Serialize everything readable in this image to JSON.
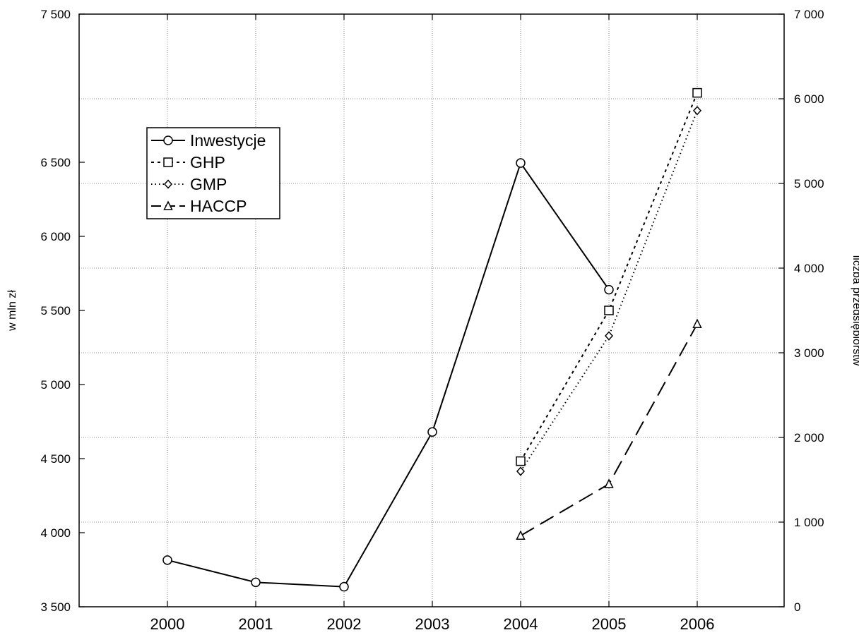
{
  "chart_data": {
    "type": "line",
    "title": "",
    "xlabel": "",
    "ylabel_left": "w mln zł",
    "ylabel_right": "liczba przedsiębiorstw",
    "categories": [
      "2000",
      "2001",
      "2002",
      "2003",
      "2004",
      "2005",
      "2006"
    ],
    "ylim_left": [
      3500,
      7500
    ],
    "ylim_right": [
      0,
      7000
    ],
    "yticks_left": [
      "3 500",
      "4 000",
      "4 500",
      "5 000",
      "5 500",
      "6 000",
      "6 500",
      "7 500"
    ],
    "yticks_left_values": [
      3500,
      4000,
      4500,
      5000,
      5500,
      6000,
      6500,
      7500
    ],
    "yticks_right": [
      "0",
      "1 000",
      "2 000",
      "3 000",
      "4 000",
      "5 000",
      "6 000",
      "7 000"
    ],
    "yticks_right_values": [
      0,
      1000,
      2000,
      3000,
      4000,
      5000,
      6000,
      7000
    ],
    "grid": true,
    "legend_position": "upper-left",
    "series": [
      {
        "name": "Inwestycje",
        "axis": "left",
        "marker": "circle",
        "line": "solid",
        "x": [
          "2000",
          "2001",
          "2002",
          "2003",
          "2004",
          "2005"
        ],
        "values": [
          3815,
          3665,
          3635,
          4680,
          6495,
          5640
        ]
      },
      {
        "name": "GHP",
        "axis": "right",
        "marker": "square",
        "line": "short-dash",
        "x": [
          "2004",
          "2005",
          "2006"
        ],
        "values": [
          1720,
          3500,
          6070
        ]
      },
      {
        "name": "GMP",
        "axis": "right",
        "marker": "diamond",
        "line": "dotted",
        "x": [
          "2004",
          "2005",
          "2006"
        ],
        "values": [
          1600,
          3200,
          5860
        ]
      },
      {
        "name": "HACCP",
        "axis": "right",
        "marker": "triangle",
        "line": "long-dash",
        "x": [
          "2004",
          "2005",
          "2006"
        ],
        "values": [
          840,
          1450,
          3340
        ]
      }
    ]
  }
}
